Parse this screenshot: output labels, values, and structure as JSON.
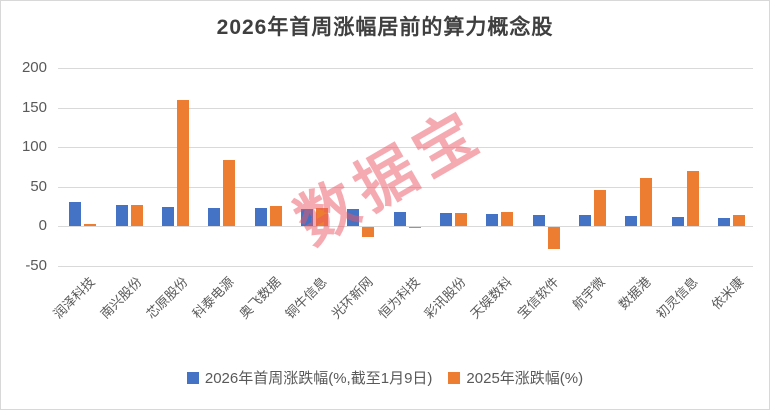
{
  "title": "2026年首周涨幅居前的算力概念股",
  "watermark": {
    "text": "数据宝",
    "color": "rgba(235,85,100,0.5)"
  },
  "colors": {
    "series_blue": "#4472C4",
    "series_orange": "#ED7D31",
    "gridline": "#D9D9D9",
    "axis_label": "#595959",
    "title_text": "#3F3F3F"
  },
  "legend": {
    "items": [
      {
        "label": "2026年首周涨跌幅(%,截至1月9日)",
        "color": "#4472C4"
      },
      {
        "label": "2025年涨跌幅(%)",
        "color": "#ED7D31"
      }
    ]
  },
  "chart_data": {
    "type": "bar",
    "title": "2026年首周涨幅居前的算力概念股",
    "categories": [
      "润泽科技",
      "南兴股份",
      "芯原股份",
      "科泰电源",
      "奥飞数据",
      "铜牛信息",
      "光环新网",
      "恒为科技",
      "彩讯股份",
      "天娱数科",
      "宝信软件",
      "航宇微",
      "数据港",
      "初灵信息",
      "依米康"
    ],
    "series": [
      {
        "name": "2026年首周涨跌幅(%,截至1月9日)",
        "color": "#4472C4",
        "values": [
          30,
          27,
          24,
          23,
          23,
          22,
          21,
          18,
          17,
          15,
          14,
          14,
          13,
          12,
          10
        ]
      },
      {
        "name": "2025年涨跌幅(%)",
        "color": "#ED7D31",
        "values": [
          2,
          26,
          160,
          83,
          25,
          23,
          -13,
          -1,
          16,
          18,
          -28,
          45,
          61,
          70,
          14
        ]
      }
    ],
    "xlabel": "",
    "ylabel": "",
    "ylim": [
      -50,
      200
    ],
    "yticks": [
      200,
      150,
      100,
      50,
      0,
      -50
    ],
    "grid": true,
    "legend_position": "bottom"
  }
}
